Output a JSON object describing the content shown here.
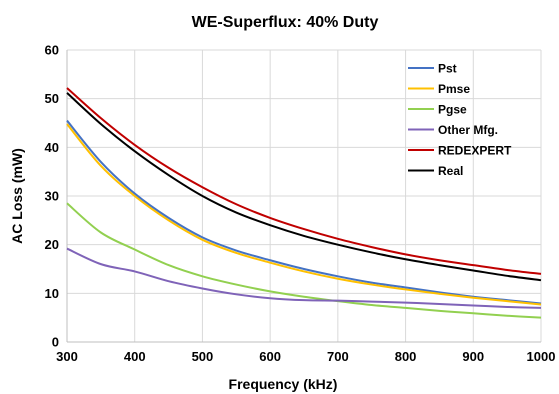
{
  "chart_data": {
    "type": "line",
    "title": "WE-Superflux: 40% Duty",
    "xlabel": "Frequency (kHz)",
    "ylabel": "AC Loss (mW)",
    "xlim": [
      300,
      1000
    ],
    "ylim": [
      0,
      60
    ],
    "xticks": [
      300,
      400,
      500,
      600,
      700,
      800,
      900,
      1000
    ],
    "yticks": [
      0,
      10,
      20,
      30,
      40,
      50,
      60
    ],
    "grid": true,
    "legend_position": "top-right",
    "series": [
      {
        "name": "Pst",
        "color": "#4472c4",
        "x": [
          300,
          350,
          400,
          450,
          500,
          550,
          600,
          650,
          700,
          750,
          800,
          850,
          900,
          950,
          1000
        ],
        "y": [
          45.5,
          37,
          30.5,
          25.5,
          21.5,
          18.8,
          16.8,
          15,
          13.5,
          12.2,
          11.2,
          10.2,
          9.3,
          8.6,
          7.9
        ]
      },
      {
        "name": "Pmse",
        "color": "#ffc000",
        "x": [
          300,
          350,
          400,
          450,
          500,
          550,
          600,
          650,
          700,
          750,
          800,
          850,
          900,
          950,
          1000
        ],
        "y": [
          44.8,
          36.2,
          30,
          25,
          21,
          18.3,
          16.3,
          14.5,
          13,
          11.8,
          10.8,
          9.9,
          9.1,
          8.4,
          7.7
        ]
      },
      {
        "name": "Pgse",
        "color": "#92d050",
        "x": [
          300,
          350,
          400,
          450,
          500,
          550,
          600,
          650,
          700,
          750,
          800,
          850,
          900,
          950,
          1000
        ],
        "y": [
          28.5,
          22.5,
          19,
          15.8,
          13.5,
          11.8,
          10.4,
          9.3,
          8.4,
          7.6,
          7,
          6.4,
          5.9,
          5.4,
          5
        ]
      },
      {
        "name": "Other Mfg.",
        "color": "#7f63b8",
        "x": [
          300,
          350,
          400,
          450,
          500,
          550,
          600,
          650,
          700,
          750,
          800,
          850,
          900,
          950,
          1000
        ],
        "y": [
          19.2,
          16,
          14.5,
          12.5,
          11,
          9.8,
          9,
          8.6,
          8.5,
          8.3,
          8.1,
          7.8,
          7.5,
          7.2,
          7
        ]
      },
      {
        "name": "REDEXPERT",
        "color": "#c00000",
        "x": [
          300,
          350,
          400,
          450,
          500,
          550,
          600,
          650,
          700,
          750,
          800,
          850,
          900,
          950,
          1000
        ],
        "y": [
          52.2,
          46,
          40.5,
          35.8,
          31.8,
          28.3,
          25.5,
          23.2,
          21.2,
          19.5,
          18,
          16.8,
          15.8,
          14.8,
          14
        ]
      },
      {
        "name": "Real",
        "color": "#000000",
        "x": [
          300,
          350,
          400,
          450,
          500,
          550,
          600,
          650,
          700,
          750,
          800,
          850,
          900,
          950,
          1000
        ],
        "y": [
          51.2,
          44.8,
          39.2,
          34.3,
          30,
          26.6,
          24,
          21.8,
          20,
          18.4,
          17,
          15.8,
          14.7,
          13.6,
          12.7
        ]
      }
    ]
  }
}
